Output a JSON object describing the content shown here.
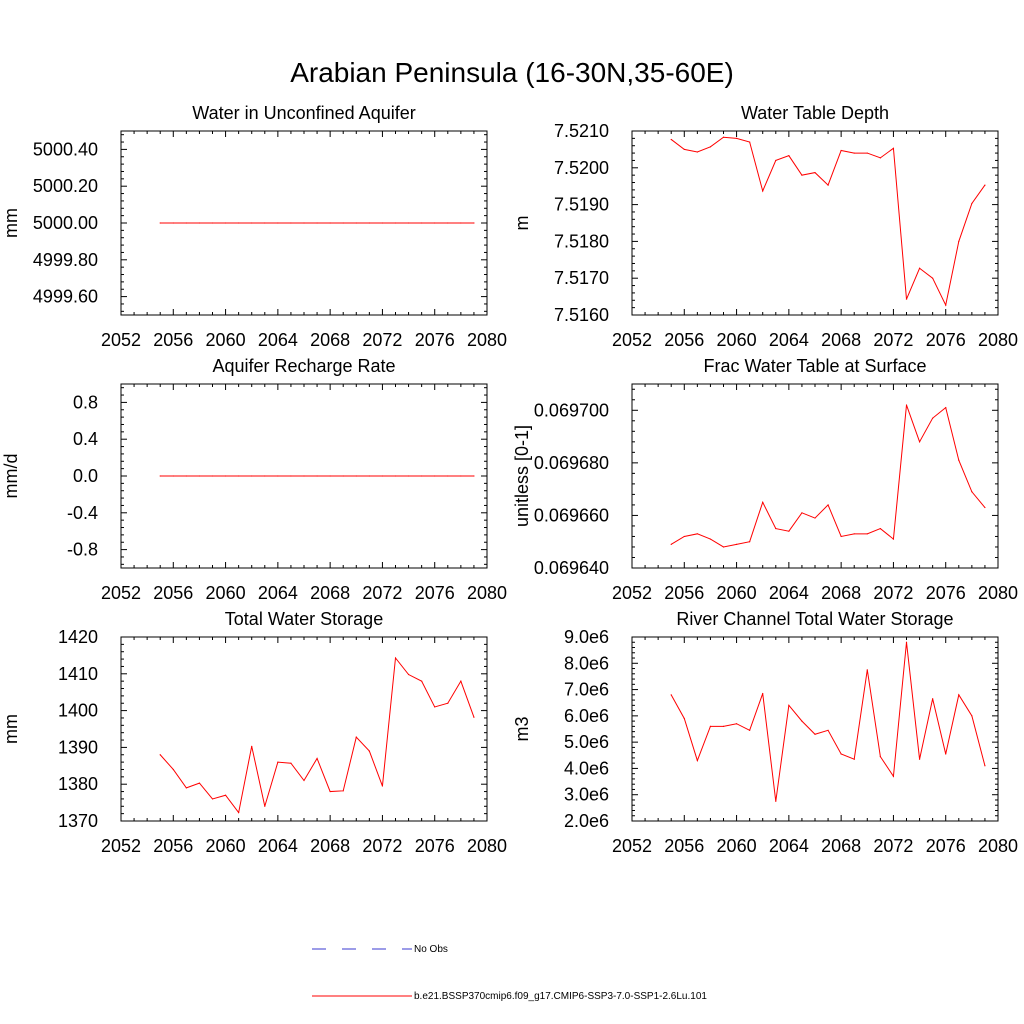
{
  "figure": {
    "title": "Arabian Peninsula (16-30N,35-60E)"
  },
  "legend": {
    "obs_label": "No Obs",
    "obs_color": "#3a3ad0",
    "model_label": "b.e21.BSSP370cmip6.f09_g17.CMIP6-SSP3-7.0-SSP1-2.6Lu.101",
    "model_color": "#ff0000"
  },
  "chart_data": [
    {
      "id": "unconfined",
      "type": "line",
      "title": "Water in Unconfined Aquifer",
      "xlabel": "",
      "ylabel": "mm",
      "xlim": [
        2052,
        2080
      ],
      "ylim": [
        4999.5,
        5000.5
      ],
      "xticks": [
        "2052",
        "2056",
        "2060",
        "2064",
        "2068",
        "2072",
        "2076",
        "2080"
      ],
      "yticks": [
        "4999.60",
        "4999.80",
        "5000.00",
        "5000.20",
        "5000.40"
      ],
      "x": [
        2055,
        2056,
        2057,
        2058,
        2059,
        2060,
        2061,
        2062,
        2063,
        2064,
        2065,
        2066,
        2067,
        2068,
        2069,
        2070,
        2071,
        2072,
        2073,
        2074,
        2075,
        2076,
        2077,
        2078,
        2079
      ],
      "series": [
        {
          "values": [
            5000,
            5000,
            5000,
            5000,
            5000,
            5000,
            5000,
            5000,
            5000,
            5000,
            5000,
            5000,
            5000,
            5000,
            5000,
            5000,
            5000,
            5000,
            5000,
            5000,
            5000,
            5000,
            5000,
            5000,
            5000
          ]
        }
      ]
    },
    {
      "id": "wtdepth",
      "type": "line",
      "title": "Water Table Depth",
      "xlabel": "",
      "ylabel": "m",
      "xlim": [
        2052,
        2080
      ],
      "ylim": [
        7.516,
        7.521
      ],
      "xticks": [
        "2052",
        "2056",
        "2060",
        "2064",
        "2068",
        "2072",
        "2076",
        "2080"
      ],
      "yticks": [
        "7.5160",
        "7.5170",
        "7.5180",
        "7.5190",
        "7.5200",
        "7.5210"
      ],
      "x": [
        2055,
        2056,
        2057,
        2058,
        2059,
        2060,
        2061,
        2062,
        2063,
        2064,
        2065,
        2066,
        2067,
        2068,
        2069,
        2070,
        2071,
        2072,
        2073,
        2074,
        2075,
        2076,
        2077,
        2078,
        2079
      ],
      "series": [
        {
          "values": [
            7.52077,
            7.5205,
            7.52043,
            7.52057,
            7.52083,
            7.5208,
            7.5207,
            7.51937,
            7.5202,
            7.52033,
            7.5198,
            7.51987,
            7.51953,
            7.52047,
            7.5204,
            7.5204,
            7.52027,
            7.52053,
            7.51643,
            7.51727,
            7.517,
            7.51627,
            7.518,
            7.51903,
            7.51953
          ]
        }
      ]
    },
    {
      "id": "recharge",
      "type": "line",
      "title": "Aquifer Recharge Rate",
      "xlabel": "",
      "ylabel": "mm/d",
      "xlim": [
        2052,
        2080
      ],
      "ylim": [
        -1.0,
        1.0
      ],
      "xticks": [
        "2052",
        "2056",
        "2060",
        "2064",
        "2068",
        "2072",
        "2076",
        "2080"
      ],
      "yticks": [
        "-0.8",
        "-0.4",
        "0.0",
        "0.4",
        "0.8"
      ],
      "x": [
        2055,
        2056,
        2057,
        2058,
        2059,
        2060,
        2061,
        2062,
        2063,
        2064,
        2065,
        2066,
        2067,
        2068,
        2069,
        2070,
        2071,
        2072,
        2073,
        2074,
        2075,
        2076,
        2077,
        2078,
        2079
      ],
      "series": [
        {
          "values": [
            0,
            0,
            0,
            0,
            0,
            0,
            0,
            0,
            0,
            0,
            0,
            0,
            0,
            0,
            0,
            0,
            0,
            0,
            0,
            0,
            0,
            0,
            0,
            0,
            0
          ]
        }
      ]
    },
    {
      "id": "fracwt",
      "type": "line",
      "title": "Frac Water Table at Surface",
      "xlabel": "",
      "ylabel": "unitless [0-1]",
      "xlim": [
        2052,
        2080
      ],
      "ylim": [
        0.06964,
        0.06971
      ],
      "xticks": [
        "2052",
        "2056",
        "2060",
        "2064",
        "2068",
        "2072",
        "2076",
        "2080"
      ],
      "yticks": [
        "0.069640",
        "0.069660",
        "0.069680",
        "0.069700"
      ],
      "x": [
        2055,
        2056,
        2057,
        2058,
        2059,
        2060,
        2061,
        2062,
        2063,
        2064,
        2065,
        2066,
        2067,
        2068,
        2069,
        2070,
        2071,
        2072,
        2073,
        2074,
        2075,
        2076,
        2077,
        2078,
        2079
      ],
      "series": [
        {
          "values": [
            0.069649,
            0.069652,
            0.069653,
            0.069651,
            0.069648,
            0.069649,
            0.06965,
            0.069665,
            0.069655,
            0.069654,
            0.069661,
            0.069659,
            0.069664,
            0.069652,
            0.069653,
            0.069653,
            0.069655,
            0.069651,
            0.069702,
            0.069688,
            0.069697,
            0.069701,
            0.069681,
            0.069669,
            0.069663
          ]
        }
      ]
    },
    {
      "id": "tws",
      "type": "line",
      "title": "Total Water Storage",
      "xlabel": "",
      "ylabel": "mm",
      "xlim": [
        2052,
        2080
      ],
      "ylim": [
        1370,
        1420
      ],
      "xticks": [
        "2052",
        "2056",
        "2060",
        "2064",
        "2068",
        "2072",
        "2076",
        "2080"
      ],
      "yticks": [
        "1370",
        "1380",
        "1390",
        "1400",
        "1410",
        "1420"
      ],
      "x": [
        2055,
        2056,
        2057,
        2058,
        2059,
        2060,
        2061,
        2062,
        2063,
        2064,
        2065,
        2066,
        2067,
        2068,
        2069,
        2070,
        2071,
        2072,
        2073,
        2074,
        2075,
        2076,
        2077,
        2078,
        2079
      ],
      "series": [
        {
          "values": [
            1388,
            1384,
            1379,
            1380.3,
            1376,
            1377,
            1372.3,
            1390.3,
            1374,
            1386,
            1385.7,
            1381,
            1387,
            1378,
            1378.2,
            1392.8,
            1389,
            1379.5,
            1414.3,
            1409.8,
            1408,
            1401,
            1402,
            1408,
            1398.2
          ]
        }
      ]
    },
    {
      "id": "river",
      "type": "line",
      "title": "River Channel Total Water Storage",
      "xlabel": "",
      "ylabel": "m3",
      "xlim": [
        2052,
        2080
      ],
      "ylim": [
        2000000,
        9000000
      ],
      "xticks": [
        "2052",
        "2056",
        "2060",
        "2064",
        "2068",
        "2072",
        "2076",
        "2080"
      ],
      "yticks": [
        "2.0e6",
        "3.0e6",
        "4.0e6",
        "5.0e6",
        "6.0e6",
        "7.0e6",
        "8.0e6",
        "9.0e6"
      ],
      "x": [
        2055,
        2056,
        2057,
        2058,
        2059,
        2060,
        2061,
        2062,
        2063,
        2064,
        2065,
        2066,
        2067,
        2068,
        2069,
        2070,
        2071,
        2072,
        2073,
        2074,
        2075,
        2076,
        2077,
        2078,
        2079
      ],
      "series": [
        {
          "values": [
            6800000,
            5900000,
            4300000,
            5600000,
            5600000,
            5700000,
            5450000,
            6850000,
            2750000,
            6400000,
            5800000,
            5300000,
            5450000,
            4550000,
            4350000,
            7750000,
            4450000,
            3700000,
            8800000,
            4350000,
            6650000,
            4550000,
            6800000,
            6000000,
            4100000
          ]
        }
      ]
    }
  ]
}
